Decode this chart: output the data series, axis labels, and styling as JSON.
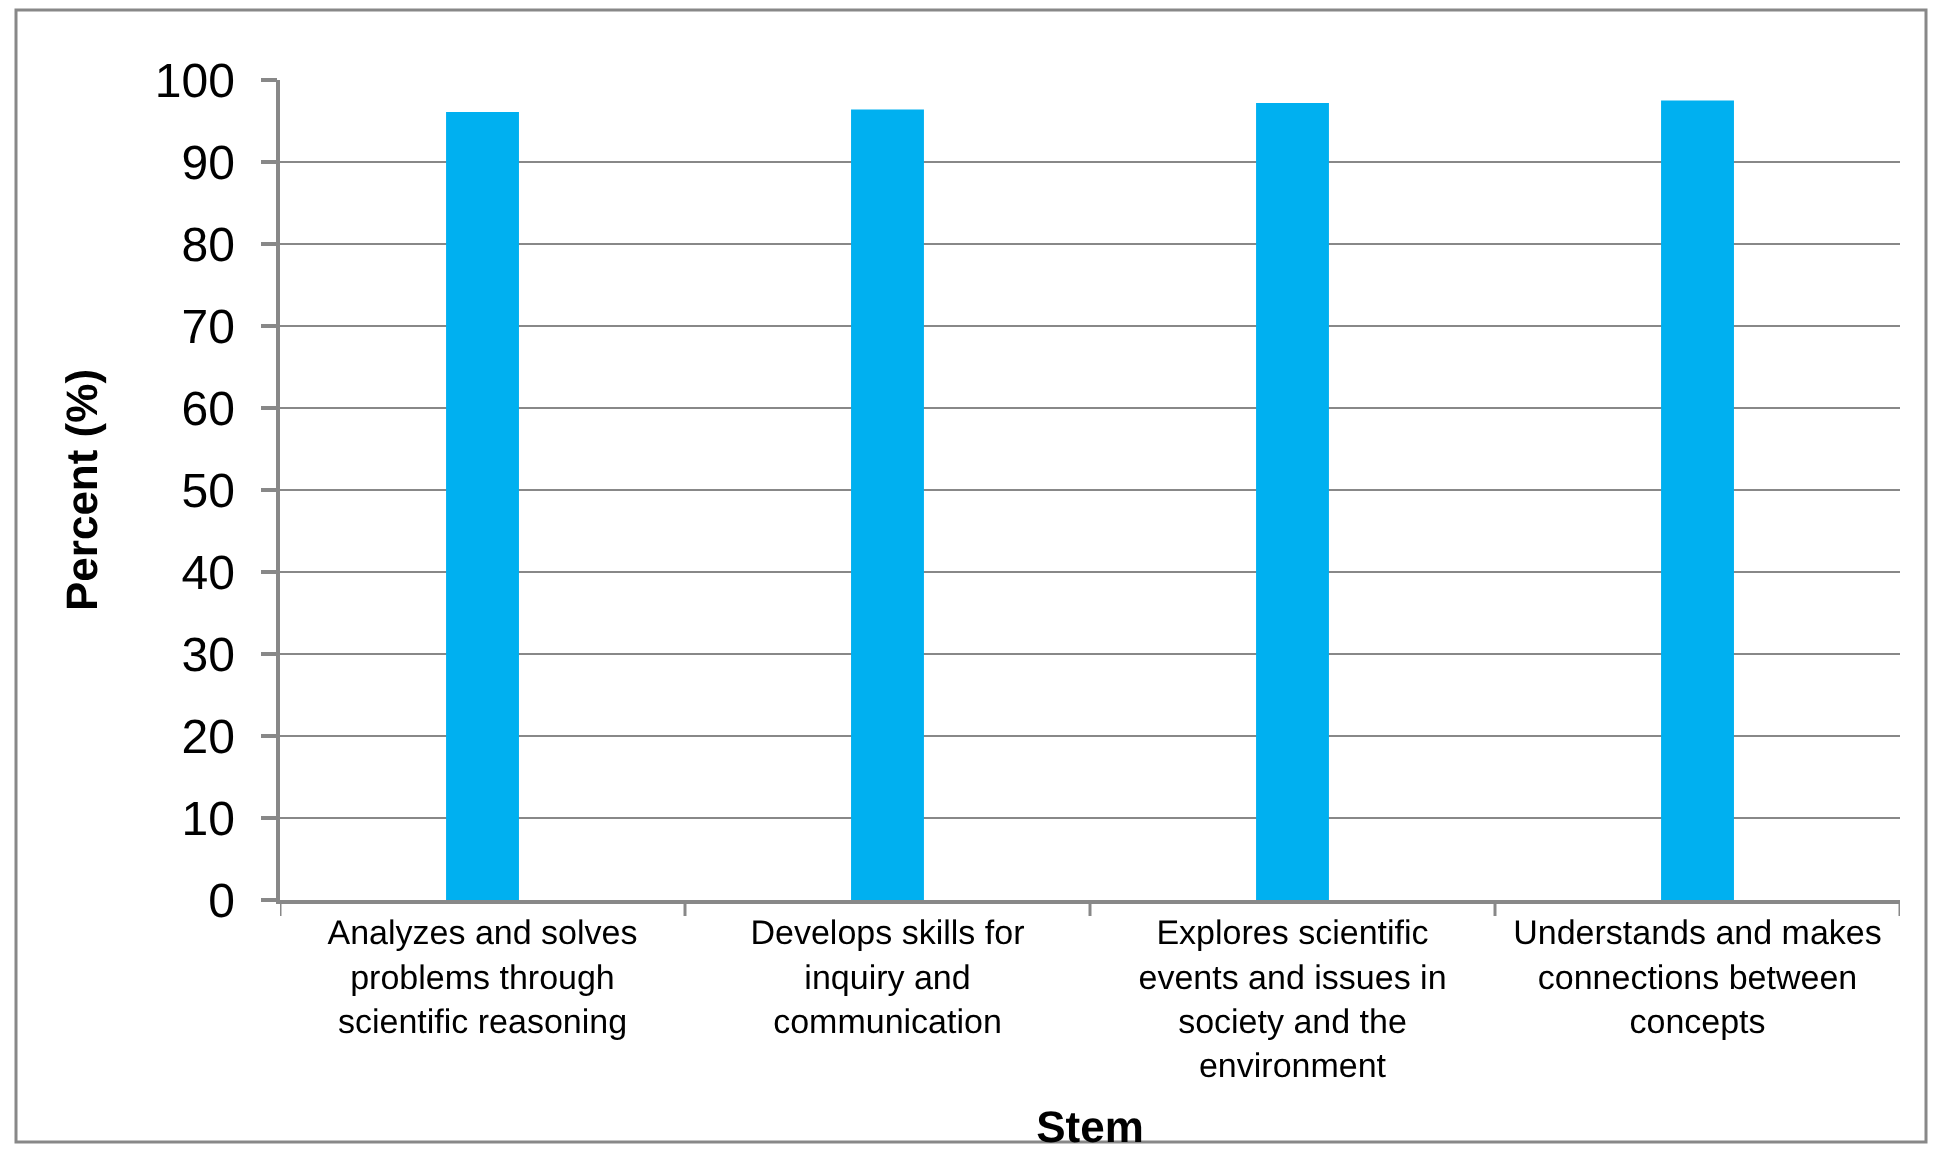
{
  "chart_data": {
    "type": "bar",
    "xlabel": "Stem",
    "ylabel": "Percent (%)",
    "categories": [
      "Analyzes and solves problems through scientific reasoning",
      "Develops skills for inquiry and communication",
      "Explores scientific events and issues in society and the environment",
      "Understands and makes connections between concepts"
    ],
    "values": [
      96.1,
      96.4,
      97.2,
      97.5
    ],
    "color": "#00b0f0",
    "ylim": [
      0,
      100
    ],
    "yticks": [
      0,
      10,
      20,
      30,
      40,
      50,
      60,
      70,
      80,
      90,
      100
    ],
    "grid": "y"
  }
}
